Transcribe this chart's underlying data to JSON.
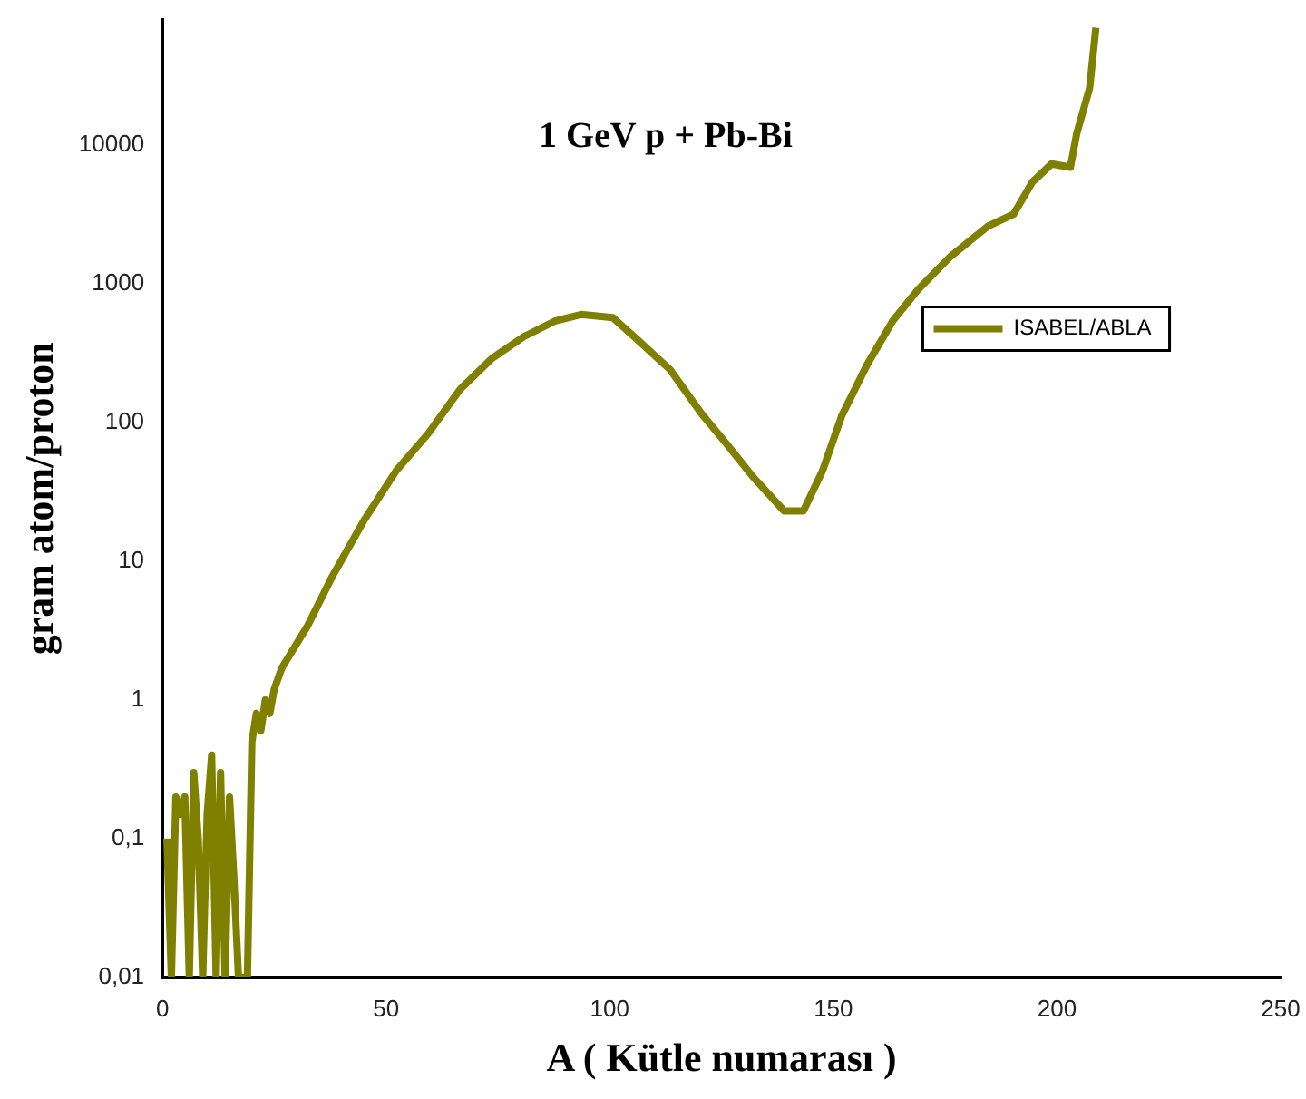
{
  "chart_data": {
    "type": "line",
    "title": "1 GeV p + Pb-Bi",
    "xlabel": "A ( Kütle numarası )",
    "ylabel": "gram atom/proton",
    "log": "y",
    "grid": false,
    "legend": "right",
    "marker": "none",
    "line_style": "solid",
    "xlim": [
      0,
      250
    ],
    "xticks": [
      0,
      50,
      100,
      150,
      200,
      250
    ],
    "ylim": [
      0.01,
      80000
    ],
    "yticks": [
      {
        "value": 0.01,
        "label": "0,01"
      },
      {
        "value": 0.1,
        "label": "0,1"
      },
      1,
      10,
      100,
      1000,
      10000
    ],
    "series": [
      {
        "name": "ISABEL/ABLA",
        "color": "#808000",
        "x": [
          1,
          2,
          3,
          4,
          5,
          6,
          7,
          8,
          9,
          10,
          11,
          12,
          13,
          14,
          15,
          16,
          17,
          18,
          19,
          20,
          21,
          22,
          23,
          24,
          25,
          26.7,
          32.4,
          38,
          45.2,
          52.3,
          59.4,
          66.6,
          73.7,
          80.8,
          87.9,
          93.6,
          100.7,
          106.4,
          113.5,
          120.6,
          126.3,
          131.9,
          139,
          143.3,
          147.6,
          151.9,
          157.6,
          163.3,
          169,
          176,
          184.6,
          190.3,
          194.5,
          198.8,
          203,
          204.4,
          207.3,
          208.7
        ],
        "values": [
          0.1,
          0.01,
          0.2,
          0.15,
          0.2,
          0.01,
          0.3,
          0.1,
          0.01,
          0.15,
          0.4,
          0.01,
          0.3,
          0.01,
          0.2,
          0.05,
          0.01,
          0.01,
          0.01,
          0.5,
          0.8,
          0.6,
          1,
          0.8,
          1.2,
          1.7,
          3.4,
          7.8,
          20,
          45,
          83,
          174,
          290,
          415,
          540,
          600,
          570,
          390,
          240,
          115,
          69,
          41,
          23,
          23,
          45,
          112,
          263,
          540,
          910,
          1550,
          2600,
          3170,
          5400,
          7300,
          6900,
          12000,
          25700,
          70000
        ]
      }
    ]
  }
}
